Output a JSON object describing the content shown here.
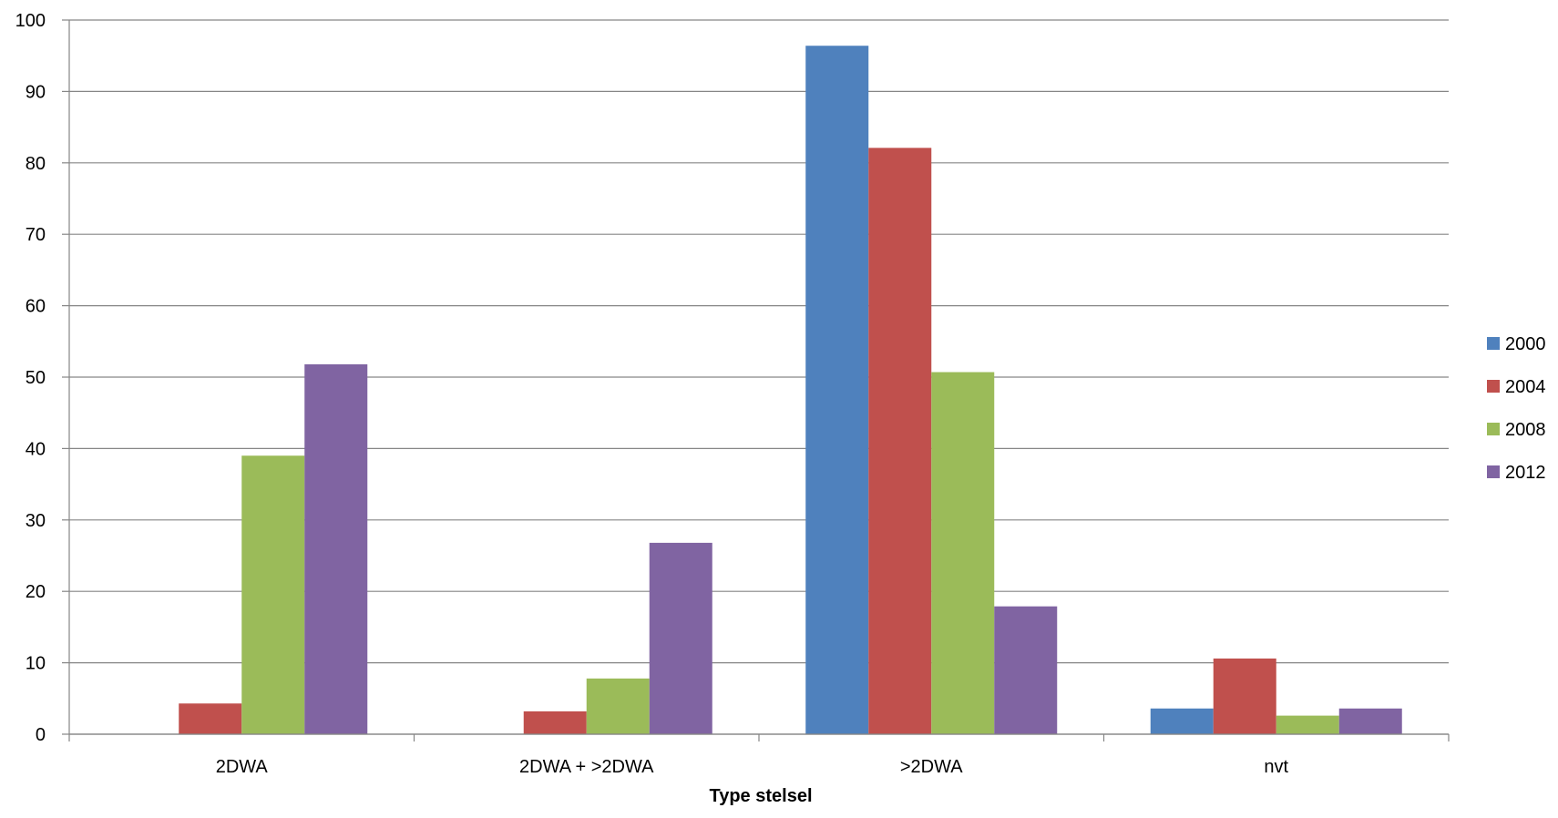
{
  "chart_data": {
    "type": "bar",
    "title": "",
    "xlabel": "Type stelsel",
    "ylabel": "",
    "ylim": [
      0,
      100
    ],
    "yticks": [
      0,
      10,
      20,
      30,
      40,
      50,
      60,
      70,
      80,
      90,
      100
    ],
    "grid": true,
    "legend_position": "right",
    "categories": [
      "2DWA",
      "2DWA + >2DWA",
      ">2DWA",
      "nvt"
    ],
    "series": [
      {
        "name": "2000",
        "color": "#4F81BD",
        "values": [
          0,
          0,
          96.4,
          3.6
        ]
      },
      {
        "name": "2004",
        "color": "#C0504D",
        "values": [
          4.3,
          3.2,
          82.1,
          10.6
        ]
      },
      {
        "name": "2008",
        "color": "#9BBB59",
        "values": [
          39.0,
          7.8,
          50.7,
          2.6
        ]
      },
      {
        "name": "2012",
        "color": "#8064A2",
        "values": [
          51.8,
          26.8,
          17.9,
          3.6
        ]
      }
    ]
  }
}
